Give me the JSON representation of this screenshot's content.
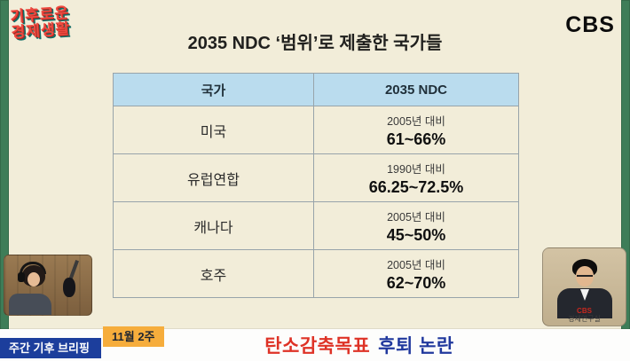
{
  "branding": {
    "show_logo_line1": "기후로운",
    "show_logo_line2": "경제생활",
    "network": "CBS"
  },
  "title": "2035 NDC ‘범위’로 제출한 국가들",
  "chart_data": {
    "type": "table",
    "title": "2035 NDC ‘범위’로 제출한 국가들",
    "columns": [
      "국가",
      "2035 NDC"
    ],
    "rows": [
      {
        "country": "미국",
        "baseline": "2005년 대비",
        "range": "61~66%"
      },
      {
        "country": "유럽연합",
        "baseline": "1990년 대비",
        "range": "66.25~72.5%"
      },
      {
        "country": "캐나다",
        "baseline": "2005년 대비",
        "range": "45~50%"
      },
      {
        "country": "호주",
        "baseline": "2005년 대비",
        "range": "62~70%"
      }
    ]
  },
  "footer": {
    "program_badge": "주간 기후 브리핑",
    "week_badge": "11월 2주",
    "headline_part1": "탄소감축목표",
    "headline_part2": "후퇴 논란"
  },
  "studio_cam_right": {
    "watermark_line1": "CBS",
    "watermark_line2": "경제연구실"
  },
  "colors": {
    "background": "#f2edd9",
    "side_strip": "#3e7d58",
    "table_header_bg": "#badcee",
    "headline_red": "#de3226",
    "headline_blue": "#20389d",
    "badge_blue": "#1c3e9c",
    "badge_yellow": "#f6ad3c",
    "logo_red": "#ee4b41",
    "logo_teal": "#0e6f69"
  }
}
